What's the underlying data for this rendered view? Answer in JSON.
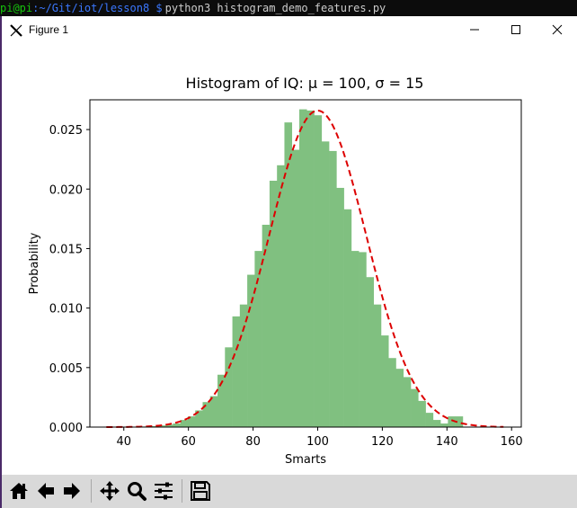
{
  "terminal": {
    "user_host": "pi@pi",
    "path": ":~/Git/iot/lesson8 $",
    "command": "python3 histogram_demo_features.py"
  },
  "window": {
    "title": "Figure 1"
  },
  "toolbar": {
    "buttons": [
      {
        "icon": "home-icon"
      },
      {
        "icon": "back-arrow-icon"
      },
      {
        "icon": "forward-arrow-icon"
      },
      {
        "icon": "pan-icon"
      },
      {
        "icon": "zoom-icon"
      },
      {
        "icon": "configure-subplots-icon"
      },
      {
        "icon": "save-icon"
      }
    ]
  },
  "colors": {
    "bars": "#80c080",
    "curve": "#dd0000"
  },
  "chart_data": {
    "type": "bar",
    "title": "Histogram of IQ: μ = 100, σ = 15",
    "xlabel": "Smarts",
    "ylabel": "Probability",
    "xlim": [
      29.5,
      163
    ],
    "ylim": [
      0,
      0.0275
    ],
    "xticks": [
      40,
      60,
      80,
      100,
      120,
      140,
      160
    ],
    "yticks": [
      0.0,
      0.005,
      0.01,
      0.015,
      0.02,
      0.025
    ],
    "ytick_labels": [
      "0.000",
      "0.005",
      "0.010",
      "0.015",
      "0.020",
      "0.025"
    ],
    "grid": false,
    "bin_edges": [
      34.6,
      36.9,
      39.2,
      41.5,
      43.8,
      46.0,
      48.3,
      50.6,
      52.9,
      55.2,
      57.5,
      59.8,
      62.1,
      64.4,
      66.7,
      69.0,
      71.3,
      73.6,
      75.9,
      78.2,
      80.5,
      82.8,
      85.1,
      87.4,
      89.7,
      92.0,
      94.3,
      96.6,
      98.9,
      101.2,
      103.5,
      105.8,
      108.1,
      110.4,
      112.7,
      115.0,
      117.3,
      119.6,
      121.9,
      124.2,
      126.5,
      128.8,
      131.1,
      133.4,
      135.7,
      138.0,
      140.3,
      142.6,
      144.9
    ],
    "bin_values": [
      1e-05,
      1e-05,
      1e-05,
      2e-05,
      3e-05,
      5e-05,
      8e-05,
      0.00014,
      0.0002,
      0.0003,
      0.0006,
      0.0009,
      0.0014,
      0.0021,
      0.0026,
      0.0044,
      0.0067,
      0.0093,
      0.0103,
      0.0128,
      0.0148,
      0.017,
      0.0207,
      0.022,
      0.0256,
      0.0233,
      0.0267,
      0.0266,
      0.0262,
      0.024,
      0.0232,
      0.0201,
      0.0183,
      0.0148,
      0.0147,
      0.0126,
      0.0103,
      0.0077,
      0.0058,
      0.0049,
      0.0042,
      0.0032,
      0.0022,
      0.0012,
      0.0006,
      0.0003,
      0.0009,
      0.0009
    ],
    "curve": {
      "mu": 100,
      "sigma": 15,
      "x_range": [
        34.6,
        157.5
      ],
      "style": "dashed"
    }
  }
}
